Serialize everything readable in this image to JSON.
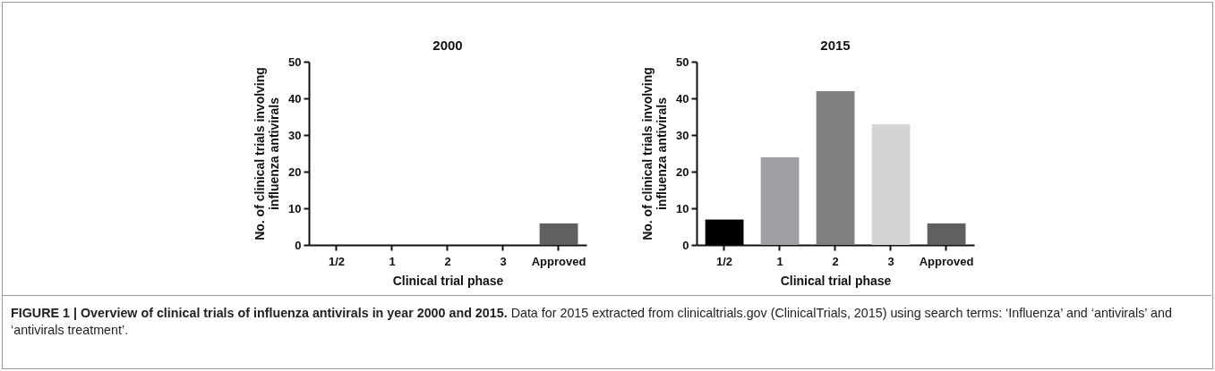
{
  "chart_data": [
    {
      "type": "bar",
      "title": "2000",
      "xlabel": "Clinical trial phase",
      "ylabel": "No. of clinical trials involving influenza antivirals",
      "categories": [
        "1/2",
        "1",
        "2",
        "3",
        "Approved"
      ],
      "values": [
        0,
        0,
        0,
        0,
        6
      ],
      "colors": [
        "#000000",
        "#a0a0a4",
        "#808080",
        "#d4d4d4",
        "#606060"
      ],
      "ylim": [
        0,
        50
      ],
      "yticks": [
        0,
        10,
        20,
        30,
        40,
        50
      ],
      "grid": false,
      "legend": false,
      "annotations": [
        "FIGURE 1 | Overview of clinical trials of influenza antivirals in year 2000 and 2015.",
        "Data for 2015 extracted from clinicaltrials.gov (ClinicalTrials, 2015) using search terms: ‘Influenza’ and ‘antivirals’ and ‘antivirals treatment’."
      ]
    },
    {
      "type": "bar",
      "title": "2015",
      "xlabel": "Clinical trial phase",
      "ylabel": "No. of clinical trials involving influenza antivirals",
      "categories": [
        "1/2",
        "1",
        "2",
        "3",
        "Approved"
      ],
      "values": [
        7,
        24,
        42,
        33,
        6
      ],
      "colors": [
        "#000000",
        "#a0a0a4",
        "#808080",
        "#d4d4d4",
        "#606060"
      ],
      "ylim": [
        0,
        50
      ],
      "yticks": [
        0,
        10,
        20,
        30,
        40,
        50
      ],
      "grid": false,
      "legend": false
    }
  ]
}
